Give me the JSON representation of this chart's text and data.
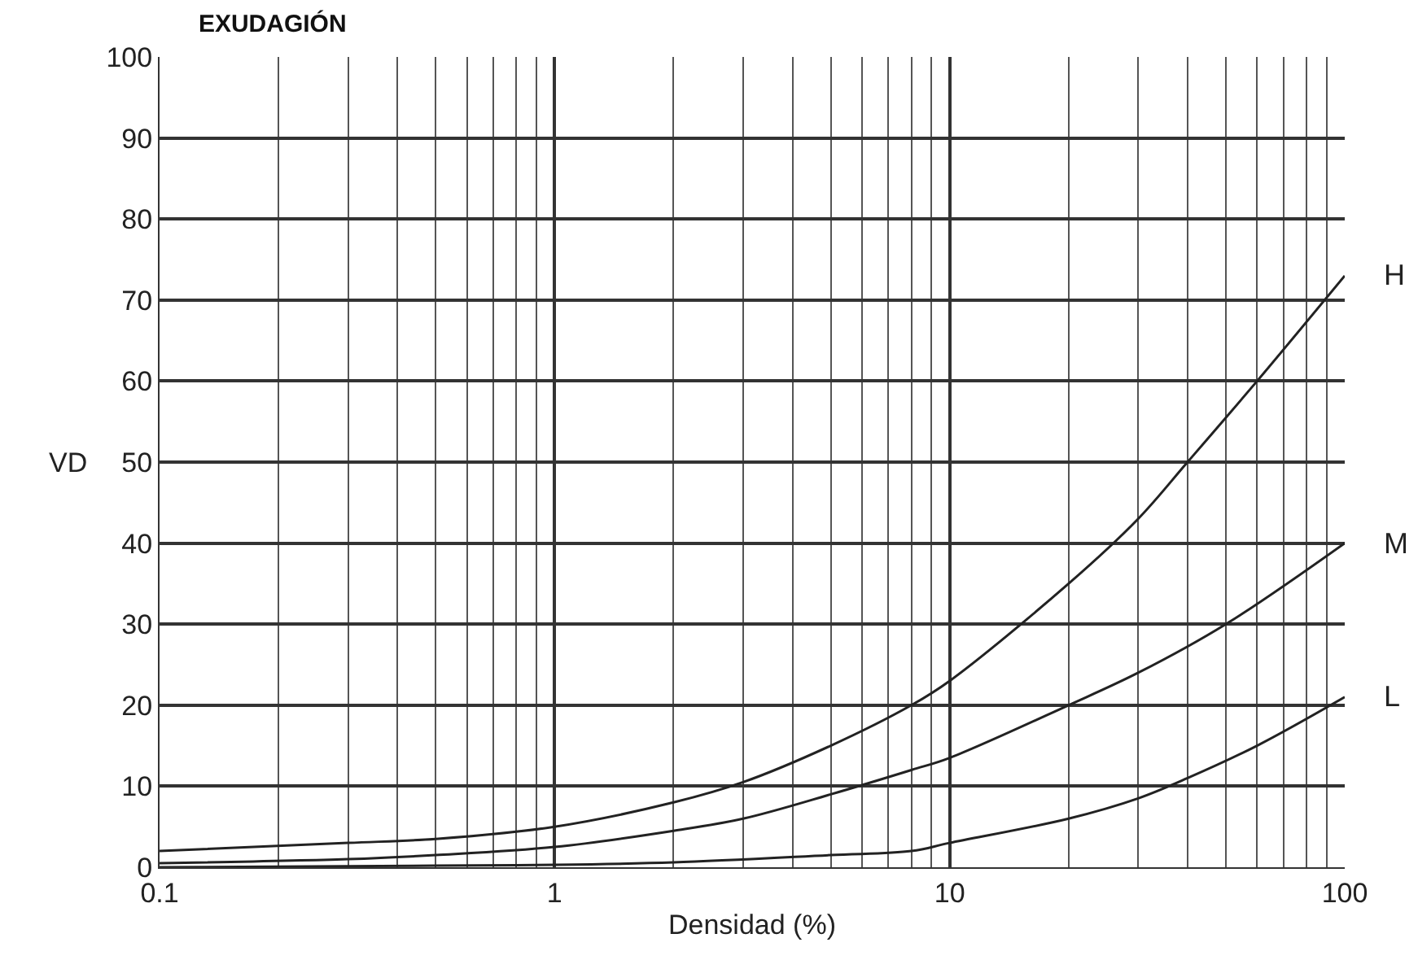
{
  "chart_data": {
    "type": "line",
    "title": "EXUDAGIÓN",
    "xlabel": "Densidad (%)",
    "ylabel": "VD",
    "log": "x",
    "xlim": [
      0.1,
      100
    ],
    "xticks": [
      0.1,
      1,
      10,
      100
    ],
    "ylim": [
      0,
      100
    ],
    "yticks": [
      0,
      10,
      20,
      30,
      40,
      50,
      60,
      70,
      80,
      90,
      100
    ],
    "grid": true,
    "legend": false,
    "marker": "none",
    "line_style": "solid",
    "series": [
      {
        "name": "H",
        "color": "#222222",
        "x": [
          0.1,
          0.3,
          0.5,
          1,
          2,
          3,
          5,
          8,
          10,
          20,
          30,
          40,
          60,
          100
        ],
        "values": [
          2,
          3,
          3.5,
          5,
          8,
          10.5,
          15,
          20,
          23,
          35,
          43,
          50,
          60,
          73
        ]
      },
      {
        "name": "M",
        "color": "#222222",
        "x": [
          0.1,
          0.3,
          0.5,
          1,
          2,
          3,
          5,
          8,
          10,
          20,
          30,
          50,
          100
        ],
        "values": [
          0.5,
          1,
          1.5,
          2.5,
          4.5,
          6,
          9,
          12,
          13.5,
          20,
          24,
          30,
          40
        ]
      },
      {
        "name": "L",
        "color": "#222222",
        "x": [
          0.1,
          0.5,
          1,
          2,
          5,
          8,
          10,
          20,
          30,
          40,
          60,
          100
        ],
        "values": [
          0,
          0.2,
          0.3,
          0.6,
          1.5,
          2,
          3,
          6,
          8.5,
          11,
          15,
          21
        ]
      }
    ]
  }
}
